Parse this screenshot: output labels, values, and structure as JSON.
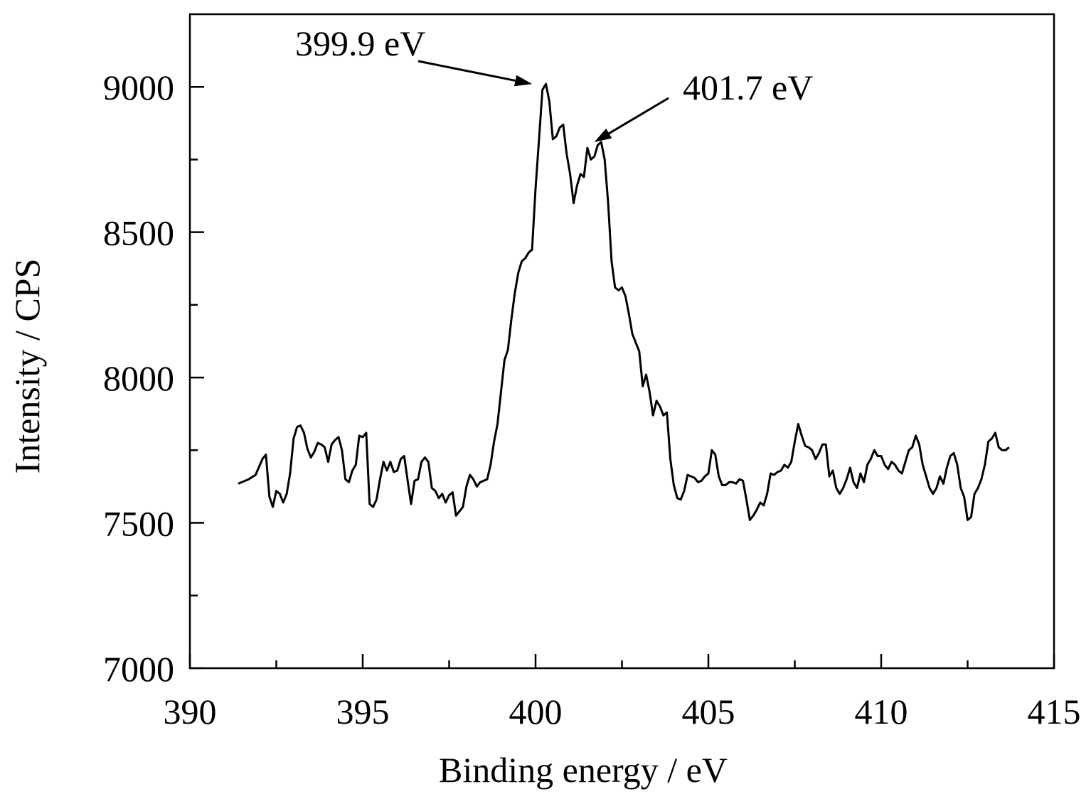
{
  "chart_data": {
    "type": "line",
    "xlabel": "Binding energy / eV",
    "ylabel": "Intensity / CPS",
    "xlim": [
      390,
      415
    ],
    "ylim": [
      7000,
      9250
    ],
    "x_major_ticks": [
      390,
      395,
      400,
      405,
      410,
      415
    ],
    "x_minor_ticks": [
      392.5,
      397.5,
      402.5,
      407.5,
      412.5
    ],
    "y_major_ticks": [
      7000,
      7500,
      8000,
      8500,
      9000
    ],
    "y_minor_ticks": [
      7250,
      7750,
      8250,
      8750
    ],
    "grid": false,
    "color": "#000000",
    "annotations": [
      {
        "text": "399.9 eV",
        "x": 399.9,
        "y": 9010
      },
      {
        "text": "401.7 eV",
        "x": 401.7,
        "y": 8810
      }
    ],
    "series": [
      {
        "points": [
          [
            391.4,
            7635
          ],
          [
            391.7,
            7650
          ],
          [
            391.9,
            7665
          ],
          [
            392.1,
            7720
          ],
          [
            392.2,
            7735
          ],
          [
            392.3,
            7590
          ],
          [
            392.4,
            7555
          ],
          [
            392.5,
            7610
          ],
          [
            392.6,
            7600
          ],
          [
            392.7,
            7570
          ],
          [
            392.8,
            7600
          ],
          [
            392.9,
            7670
          ],
          [
            393.0,
            7790
          ],
          [
            393.1,
            7830
          ],
          [
            393.2,
            7835
          ],
          [
            393.3,
            7810
          ],
          [
            393.4,
            7755
          ],
          [
            393.5,
            7725
          ],
          [
            393.6,
            7745
          ],
          [
            393.7,
            7775
          ],
          [
            393.8,
            7770
          ],
          [
            393.9,
            7760
          ],
          [
            394.0,
            7710
          ],
          [
            394.1,
            7770
          ],
          [
            394.2,
            7785
          ],
          [
            394.3,
            7795
          ],
          [
            394.4,
            7750
          ],
          [
            394.5,
            7650
          ],
          [
            394.6,
            7640
          ],
          [
            394.7,
            7680
          ],
          [
            394.8,
            7700
          ],
          [
            394.9,
            7800
          ],
          [
            395.0,
            7795
          ],
          [
            395.1,
            7810
          ],
          [
            395.2,
            7565
          ],
          [
            395.3,
            7555
          ],
          [
            395.4,
            7580
          ],
          [
            395.5,
            7650
          ],
          [
            395.6,
            7710
          ],
          [
            395.7,
            7680
          ],
          [
            395.8,
            7710
          ],
          [
            395.9,
            7675
          ],
          [
            396.0,
            7680
          ],
          [
            396.1,
            7720
          ],
          [
            396.2,
            7730
          ],
          [
            396.3,
            7645
          ],
          [
            396.4,
            7565
          ],
          [
            396.5,
            7645
          ],
          [
            396.6,
            7650
          ],
          [
            396.7,
            7710
          ],
          [
            396.8,
            7725
          ],
          [
            396.9,
            7710
          ],
          [
            397.0,
            7620
          ],
          [
            397.1,
            7610
          ],
          [
            397.2,
            7585
          ],
          [
            397.3,
            7600
          ],
          [
            397.4,
            7570
          ],
          [
            397.5,
            7595
          ],
          [
            397.6,
            7605
          ],
          [
            397.7,
            7525
          ],
          [
            397.8,
            7540
          ],
          [
            397.9,
            7555
          ],
          [
            398.0,
            7625
          ],
          [
            398.1,
            7665
          ],
          [
            398.2,
            7650
          ],
          [
            398.3,
            7625
          ],
          [
            398.4,
            7640
          ],
          [
            398.5,
            7645
          ],
          [
            398.6,
            7650
          ],
          [
            398.7,
            7700
          ],
          [
            398.8,
            7780
          ],
          [
            398.9,
            7840
          ],
          [
            399.0,
            7950
          ],
          [
            399.1,
            8060
          ],
          [
            399.2,
            8095
          ],
          [
            399.3,
            8200
          ],
          [
            399.4,
            8290
          ],
          [
            399.5,
            8360
          ],
          [
            399.6,
            8400
          ],
          [
            399.7,
            8410
          ],
          [
            399.8,
            8430
          ],
          [
            399.9,
            8440
          ],
          [
            400.0,
            8650
          ],
          [
            400.1,
            8820
          ],
          [
            400.2,
            8990
          ],
          [
            400.3,
            9010
          ],
          [
            400.4,
            8950
          ],
          [
            400.5,
            8820
          ],
          [
            400.6,
            8830
          ],
          [
            400.7,
            8860
          ],
          [
            400.8,
            8870
          ],
          [
            400.9,
            8770
          ],
          [
            401.0,
            8700
          ],
          [
            401.1,
            8600
          ],
          [
            401.2,
            8660
          ],
          [
            401.3,
            8700
          ],
          [
            401.4,
            8690
          ],
          [
            401.5,
            8790
          ],
          [
            401.6,
            8750
          ],
          [
            401.7,
            8760
          ],
          [
            401.8,
            8800
          ],
          [
            401.9,
            8810
          ],
          [
            402.0,
            8750
          ],
          [
            402.1,
            8600
          ],
          [
            402.2,
            8400
          ],
          [
            402.3,
            8310
          ],
          [
            402.4,
            8300
          ],
          [
            402.5,
            8310
          ],
          [
            402.6,
            8280
          ],
          [
            402.7,
            8220
          ],
          [
            402.8,
            8150
          ],
          [
            402.9,
            8120
          ],
          [
            403.0,
            8090
          ],
          [
            403.1,
            7970
          ],
          [
            403.2,
            8010
          ],
          [
            403.3,
            7950
          ],
          [
            403.4,
            7870
          ],
          [
            403.5,
            7920
          ],
          [
            403.6,
            7900
          ],
          [
            403.7,
            7870
          ],
          [
            403.8,
            7880
          ],
          [
            403.9,
            7720
          ],
          [
            404.0,
            7630
          ],
          [
            404.1,
            7585
          ],
          [
            404.2,
            7580
          ],
          [
            404.3,
            7610
          ],
          [
            404.4,
            7665
          ],
          [
            404.5,
            7660
          ],
          [
            404.6,
            7655
          ],
          [
            404.7,
            7640
          ],
          [
            404.8,
            7645
          ],
          [
            404.9,
            7660
          ],
          [
            405.0,
            7670
          ],
          [
            405.1,
            7750
          ],
          [
            405.2,
            7735
          ],
          [
            405.3,
            7660
          ],
          [
            405.4,
            7630
          ],
          [
            405.5,
            7630
          ],
          [
            405.6,
            7640
          ],
          [
            405.7,
            7640
          ],
          [
            405.8,
            7635
          ],
          [
            405.9,
            7650
          ],
          [
            406.0,
            7645
          ],
          [
            406.1,
            7580
          ],
          [
            406.2,
            7510
          ],
          [
            406.3,
            7525
          ],
          [
            406.4,
            7545
          ],
          [
            406.5,
            7570
          ],
          [
            406.6,
            7560
          ],
          [
            406.7,
            7600
          ],
          [
            406.8,
            7670
          ],
          [
            406.9,
            7665
          ],
          [
            407.0,
            7675
          ],
          [
            407.1,
            7680
          ],
          [
            407.2,
            7700
          ],
          [
            407.3,
            7690
          ],
          [
            407.4,
            7710
          ],
          [
            407.5,
            7780
          ],
          [
            407.6,
            7840
          ],
          [
            407.7,
            7800
          ],
          [
            407.8,
            7765
          ],
          [
            407.9,
            7760
          ],
          [
            408.0,
            7750
          ],
          [
            408.1,
            7720
          ],
          [
            408.2,
            7740
          ],
          [
            408.3,
            7770
          ],
          [
            408.4,
            7770
          ],
          [
            408.5,
            7660
          ],
          [
            408.6,
            7680
          ],
          [
            408.7,
            7620
          ],
          [
            408.8,
            7600
          ],
          [
            408.9,
            7620
          ],
          [
            409.0,
            7650
          ],
          [
            409.1,
            7690
          ],
          [
            409.2,
            7640
          ],
          [
            409.3,
            7620
          ],
          [
            409.4,
            7670
          ],
          [
            409.5,
            7640
          ],
          [
            409.6,
            7700
          ],
          [
            409.7,
            7720
          ],
          [
            409.8,
            7750
          ],
          [
            409.9,
            7730
          ],
          [
            410.0,
            7730
          ],
          [
            410.1,
            7700
          ],
          [
            410.2,
            7685
          ],
          [
            410.3,
            7710
          ],
          [
            410.4,
            7700
          ],
          [
            410.5,
            7680
          ],
          [
            410.6,
            7670
          ],
          [
            410.7,
            7710
          ],
          [
            410.8,
            7750
          ],
          [
            410.9,
            7760
          ],
          [
            411.0,
            7800
          ],
          [
            411.1,
            7770
          ],
          [
            411.2,
            7700
          ],
          [
            411.3,
            7660
          ],
          [
            411.4,
            7620
          ],
          [
            411.5,
            7600
          ],
          [
            411.6,
            7620
          ],
          [
            411.7,
            7660
          ],
          [
            411.8,
            7635
          ],
          [
            411.9,
            7690
          ],
          [
            412.0,
            7730
          ],
          [
            412.1,
            7740
          ],
          [
            412.2,
            7700
          ],
          [
            412.3,
            7620
          ],
          [
            412.4,
            7590
          ],
          [
            412.5,
            7510
          ],
          [
            412.6,
            7520
          ],
          [
            412.7,
            7600
          ],
          [
            412.8,
            7620
          ],
          [
            412.9,
            7650
          ],
          [
            413.0,
            7700
          ],
          [
            413.1,
            7780
          ],
          [
            413.2,
            7790
          ],
          [
            413.3,
            7810
          ],
          [
            413.4,
            7760
          ],
          [
            413.5,
            7750
          ],
          [
            413.6,
            7750
          ],
          [
            413.7,
            7760
          ]
        ]
      }
    ]
  }
}
